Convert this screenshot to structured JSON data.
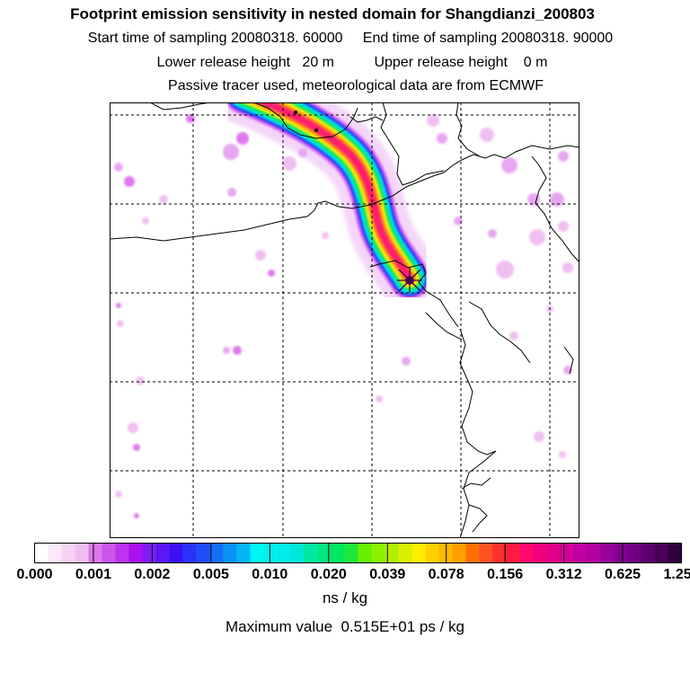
{
  "header": {
    "title": "Footprint emission sensitivity in nested domain for Shangdianzi_200803",
    "sampling_line": "Start time of sampling 20080318. 60000     End time of sampling 20080318. 90000",
    "release_line": "Lower release height   20 m          Upper release height    0 m",
    "tracer_line": "Passive tracer used, meteorological data are from ECMWF"
  },
  "colorbar": {
    "tick_labels": [
      "0.000",
      "0.001",
      "0.002",
      "0.005",
      "0.010",
      "0.020",
      "0.039",
      "0.078",
      "0.156",
      "0.312",
      "0.625",
      "1.250"
    ],
    "colors": [
      "#ffffff",
      "#fbe9fb",
      "#f6d3f6",
      "#f0bff0",
      "#dd77ee",
      "#cc55ee",
      "#bb33ee",
      "#aa11ee",
      "#7a1ef2",
      "#5a16f4",
      "#3d0ff6",
      "#2a32fa",
      "#1e4dfa",
      "#1270f8",
      "#0a93f6",
      "#05b4f6",
      "#00f5f5",
      "#00f0f0",
      "#00ecea",
      "#00e6d8",
      "#00e9a0",
      "#00e680",
      "#00e860",
      "#20e640",
      "#66f000",
      "#8cf000",
      "#b0f000",
      "#d8f000",
      "#ffee00",
      "#ffd000",
      "#ffb800",
      "#ffa000",
      "#ff7000",
      "#ff5020",
      "#ff3030",
      "#ff1a40",
      "#ff0870",
      "#f0007a",
      "#e0008a",
      "#d00098",
      "#c000a0",
      "#b0009e",
      "#98009a",
      "#800090",
      "#700080",
      "#5c0070",
      "#480058",
      "#300040"
    ],
    "unit": "ns / kg"
  },
  "footer": {
    "max_value": "Maximum value  0.515E+01 ps / kg"
  },
  "map": {
    "station": "Shangdianzi",
    "plume_colors": [
      "#dd66ee",
      "#2a32fa",
      "#00e0f0",
      "#00e870",
      "#ffee00",
      "#ff8a1a",
      "#ff1a70"
    ],
    "speckle_colors": [
      "#f0bff0",
      "#e8a6f2",
      "#dd77ee"
    ]
  }
}
